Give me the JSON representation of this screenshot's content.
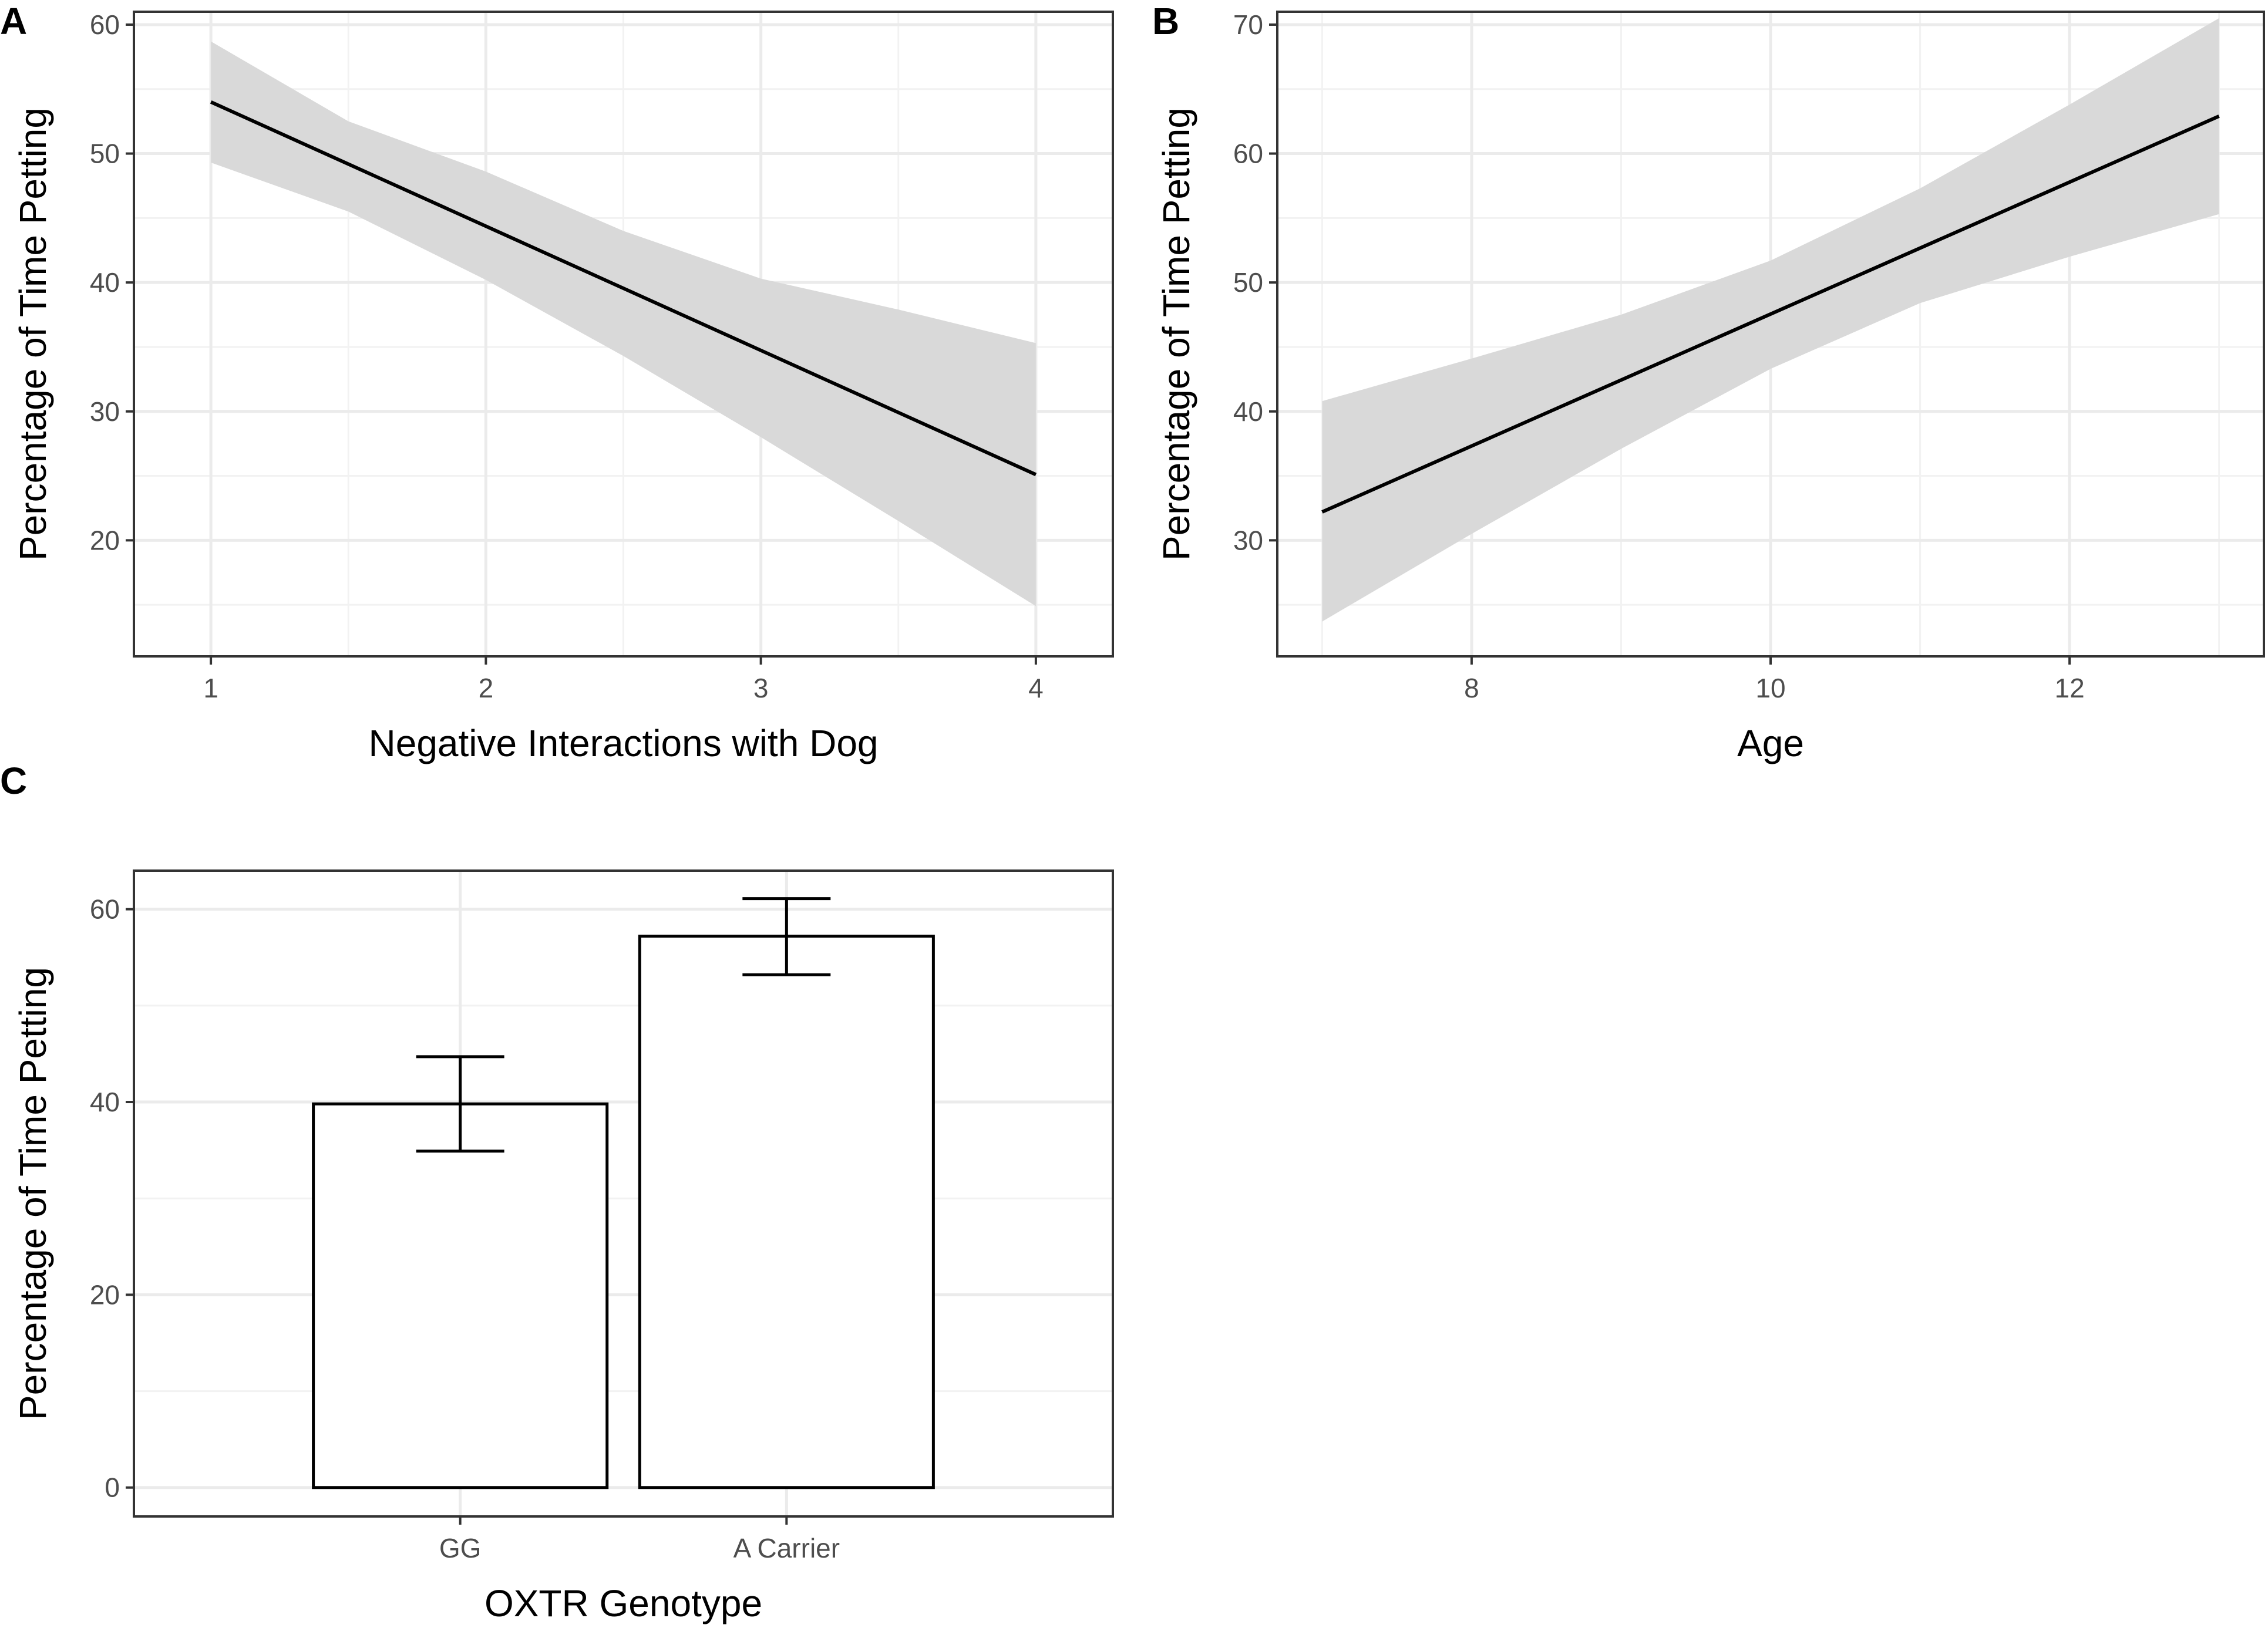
{
  "chart_data": [
    {
      "panel": "A",
      "type": "line",
      "xlabel": "Negative Interactions with Dog",
      "ylabel": "Percentage of Time Petting",
      "xlim": [
        0.72,
        4.28
      ],
      "ylim": [
        11,
        61
      ],
      "xticks": [
        1,
        2,
        3,
        4
      ],
      "yticks": [
        20,
        30,
        40,
        50,
        60
      ],
      "xminor": [
        1.5,
        2.5,
        3.5
      ],
      "yminor": [
        15,
        25,
        35,
        45,
        55
      ],
      "grid": true,
      "fit": {
        "x": [
          1,
          4
        ],
        "y": [
          54.0,
          25.1
        ]
      },
      "ci_band": {
        "x": [
          1,
          1.5,
          2,
          2.5,
          3,
          3.5,
          4
        ],
        "lower": [
          49.3,
          45.5,
          40.2,
          34.3,
          28.0,
          21.5,
          14.9
        ],
        "upper": [
          58.7,
          52.5,
          48.6,
          44.0,
          40.3,
          37.9,
          35.3
        ]
      }
    },
    {
      "panel": "B",
      "type": "line",
      "xlabel": "Age",
      "ylabel": "Percentage of Time Petting",
      "xlim": [
        6.7,
        13.3
      ],
      "ylim": [
        21,
        71
      ],
      "xticks": [
        8,
        10,
        12
      ],
      "yticks": [
        30,
        40,
        50,
        60,
        70
      ],
      "xminor": [
        7,
        9,
        11,
        13
      ],
      "yminor": [
        25,
        35,
        45,
        55,
        65
      ],
      "grid": true,
      "fit": {
        "x": [
          7,
          13
        ],
        "y": [
          32.2,
          62.9
        ]
      },
      "ci_band": {
        "x": [
          7,
          8,
          9,
          10,
          11,
          12,
          13
        ],
        "lower": [
          23.7,
          30.5,
          37.1,
          43.3,
          48.4,
          52.0,
          55.3
        ],
        "upper": [
          40.8,
          44.1,
          47.5,
          51.7,
          57.3,
          63.8,
          70.5
        ]
      }
    },
    {
      "panel": "C",
      "type": "bar",
      "xlabel": "OXTR Genotype",
      "ylabel": "Percentage of Time Petting",
      "categories": [
        "GG",
        "A Carrier"
      ],
      "values": [
        39.8,
        57.2
      ],
      "error_lower": [
        34.9,
        53.2
      ],
      "error_upper": [
        44.7,
        61.1
      ],
      "ylim": [
        -3,
        64
      ],
      "yticks": [
        0,
        20,
        40,
        60
      ],
      "yminor": [
        10,
        30,
        50
      ],
      "grid": true
    }
  ]
}
